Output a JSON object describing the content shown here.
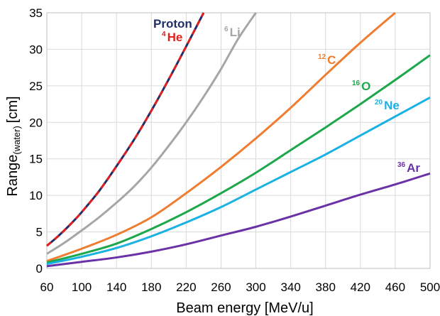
{
  "chart_data": {
    "type": "line",
    "xlabel": "Beam energy [MeV/u]",
    "ylabel_main": "Range",
    "ylabel_sub": "(water)",
    "ylabel_unit": "[cm]",
    "xlim": [
      60,
      500
    ],
    "ylim": [
      0,
      35
    ],
    "x_ticks": [
      60,
      100,
      140,
      180,
      220,
      260,
      300,
      340,
      380,
      420,
      460,
      500
    ],
    "y_ticks": [
      0,
      5,
      10,
      15,
      20,
      25,
      30,
      35
    ],
    "grid": true,
    "legend": "inline labels",
    "series": [
      {
        "name": "Proton",
        "color": "#1f2f6b",
        "dash": "none",
        "x": [
          60,
          70,
          80,
          90,
          100,
          120,
          140,
          160,
          180,
          200,
          220,
          240
        ],
        "y": [
          3.1,
          4.1,
          5.2,
          6.4,
          7.7,
          10.6,
          14.0,
          17.6,
          21.6,
          25.9,
          30.4,
          35.0
        ]
      },
      {
        "name": "He",
        "name_sup": "4",
        "color": "#e02020",
        "dash": "8 6",
        "x": [
          60,
          70,
          80,
          90,
          100,
          120,
          140,
          160,
          180,
          200,
          220,
          240
        ],
        "y": [
          3.1,
          4.1,
          5.2,
          6.4,
          7.7,
          10.6,
          14.0,
          17.6,
          21.6,
          25.9,
          30.4,
          35.0
        ]
      },
      {
        "name": "Li",
        "name_sup": "6",
        "color": "#a6a6a6",
        "dash": "none",
        "x": [
          60,
          80,
          100,
          120,
          140,
          160,
          180,
          200,
          220,
          240,
          260,
          280,
          300
        ],
        "y": [
          2.0,
          3.5,
          5.2,
          7.0,
          9.0,
          11.2,
          13.8,
          16.8,
          20.0,
          23.5,
          27.3,
          31.5,
          35.0
        ]
      },
      {
        "name": "C",
        "name_sup": "12",
        "color": "#ef7c2f",
        "dash": "none",
        "x": [
          60,
          100,
          140,
          180,
          220,
          260,
          300,
          340,
          380,
          420,
          460
        ],
        "y": [
          1.0,
          2.7,
          4.6,
          7.0,
          10.3,
          13.9,
          17.8,
          22.0,
          26.5,
          30.9,
          35.0
        ]
      },
      {
        "name": "O",
        "name_sup": "16",
        "color": "#1ca84a",
        "dash": "none",
        "x": [
          60,
          100,
          140,
          180,
          220,
          260,
          300,
          340,
          380,
          420,
          460,
          500
        ],
        "y": [
          0.8,
          2.0,
          3.4,
          5.4,
          7.7,
          10.3,
          13.1,
          16.2,
          19.3,
          22.5,
          25.8,
          29.2
        ]
      },
      {
        "name": "Ne",
        "name_sup": "20",
        "color": "#1ab1e3",
        "dash": "none",
        "x": [
          60,
          100,
          140,
          180,
          220,
          260,
          300,
          340,
          380,
          420,
          460,
          500
        ],
        "y": [
          0.6,
          1.6,
          2.8,
          4.4,
          6.3,
          8.4,
          10.8,
          13.2,
          15.6,
          18.2,
          20.8,
          23.4
        ]
      },
      {
        "name": "Ar",
        "name_sup": "36",
        "color": "#6a32a6",
        "dash": "none",
        "x": [
          60,
          100,
          140,
          180,
          220,
          260,
          300,
          340,
          380,
          420,
          460,
          500
        ],
        "y": [
          0.3,
          0.9,
          1.5,
          2.3,
          3.3,
          4.5,
          5.7,
          7.1,
          8.6,
          10.1,
          11.5,
          13.0
        ]
      }
    ]
  }
}
